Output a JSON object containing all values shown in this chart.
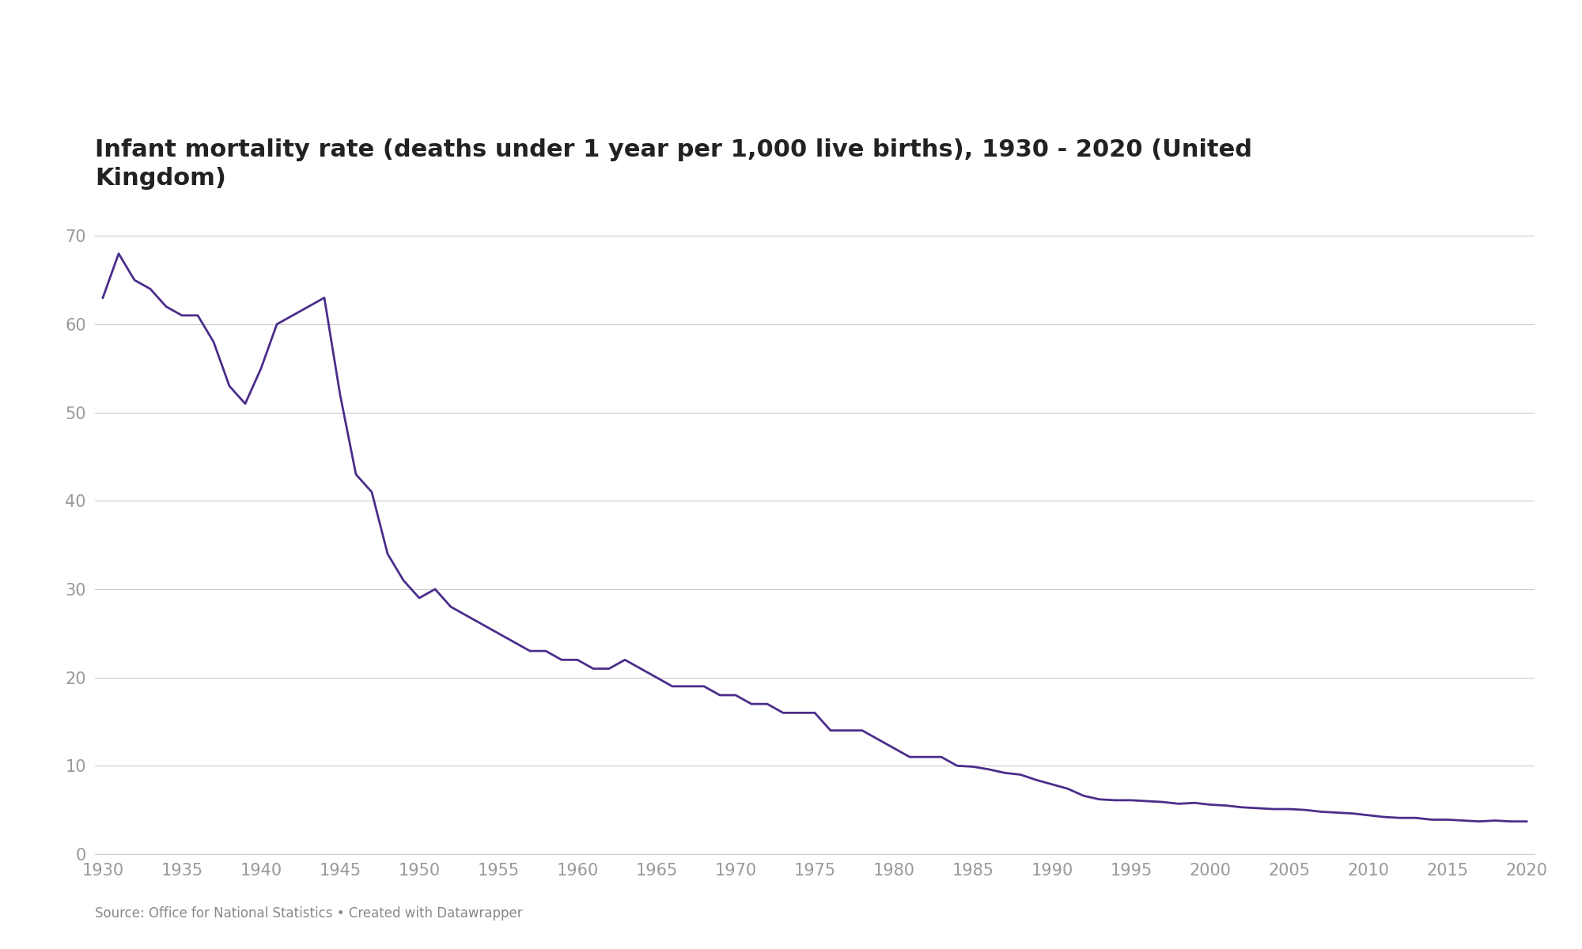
{
  "title": "Infant mortality rate (deaths under 1 year per 1,000 live births), 1930 - 2020 (United\nKingdom)",
  "source_text": "Source: Office for National Statistics • Created with Datawrapper",
  "line_color": "#4b2d8a",
  "background_color": "#ffffff",
  "grid_color": "#cccccc",
  "tick_label_color": "#999999",
  "title_color": "#222222",
  "ylim": [
    0,
    72
  ],
  "yticks": [
    0,
    10,
    20,
    30,
    40,
    50,
    60,
    70
  ],
  "xticks": [
    1930,
    1935,
    1940,
    1945,
    1950,
    1955,
    1960,
    1965,
    1970,
    1975,
    1980,
    1985,
    1990,
    1995,
    2000,
    2005,
    2010,
    2015,
    2020
  ],
  "xlim": [
    1929.5,
    2020.5
  ],
  "years": [
    1930,
    1931,
    1932,
    1933,
    1934,
    1935,
    1936,
    1937,
    1938,
    1939,
    1940,
    1941,
    1942,
    1943,
    1944,
    1945,
    1946,
    1947,
    1948,
    1949,
    1950,
    1951,
    1952,
    1953,
    1954,
    1955,
    1956,
    1957,
    1958,
    1959,
    1960,
    1961,
    1962,
    1963,
    1964,
    1965,
    1966,
    1967,
    1968,
    1969,
    1970,
    1971,
    1972,
    1973,
    1974,
    1975,
    1976,
    1977,
    1978,
    1979,
    1980,
    1981,
    1982,
    1983,
    1984,
    1985,
    1986,
    1987,
    1988,
    1989,
    1990,
    1991,
    1992,
    1993,
    1994,
    1995,
    1996,
    1997,
    1998,
    1999,
    2000,
    2001,
    2002,
    2003,
    2004,
    2005,
    2006,
    2007,
    2008,
    2009,
    2010,
    2011,
    2012,
    2013,
    2014,
    2015,
    2016,
    2017,
    2018,
    2019,
    2020
  ],
  "values": [
    63,
    68,
    65,
    64,
    62,
    61,
    61,
    58,
    53,
    51,
    55,
    60,
    61,
    62,
    63,
    52,
    43,
    41,
    34,
    31,
    29,
    30,
    28,
    27,
    26,
    25,
    24,
    23,
    23,
    22,
    22,
    21,
    21,
    22,
    21,
    20,
    19,
    19,
    19,
    18,
    18,
    17,
    17,
    16,
    16,
    16,
    14,
    14,
    14,
    13,
    12,
    11,
    11,
    11,
    10,
    9.9,
    9.6,
    9.2,
    9.0,
    8.4,
    7.9,
    7.4,
    6.6,
    6.2,
    6.1,
    6.1,
    6.0,
    5.9,
    5.7,
    5.8,
    5.6,
    5.5,
    5.3,
    5.2,
    5.1,
    5.1,
    5.0,
    4.8,
    4.7,
    4.6,
    4.4,
    4.2,
    4.1,
    4.1,
    3.9,
    3.9,
    3.8,
    3.7,
    3.8,
    3.7,
    3.7
  ],
  "line_width": 2.0,
  "title_fontsize": 22,
  "tick_fontsize": 15,
  "source_fontsize": 12
}
